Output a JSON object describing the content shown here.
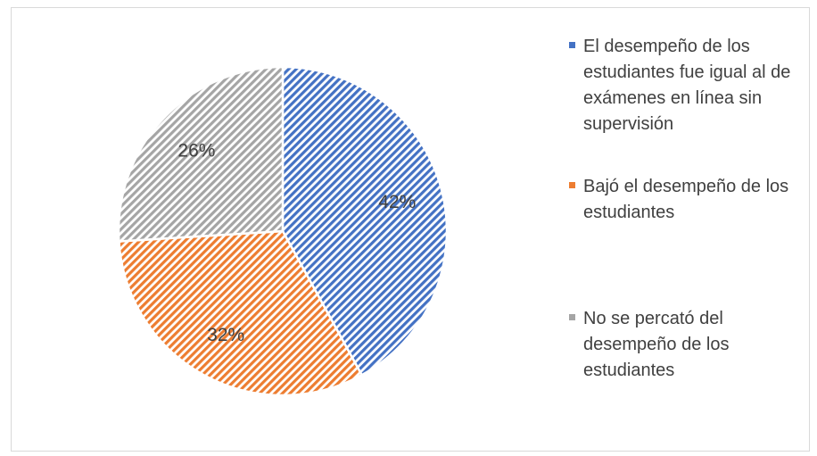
{
  "chart_data": {
    "type": "pie",
    "title": "",
    "slices": [
      {
        "label": "El desempeño de los estudiantes fue igual al de exámenes en línea sin supervisión",
        "value": 42,
        "value_label": "42%",
        "color": "#4472C4"
      },
      {
        "label": "Bajó el desempeño de los estudiantes",
        "value": 32,
        "value_label": "32%",
        "color": "#ED7D31"
      },
      {
        "label": "No se percató del desempeño de los estudiantes",
        "value": 26,
        "value_label": "26%",
        "color": "#A5A5A5"
      }
    ],
    "legend_position": "right",
    "fill_pattern": "diagonal-hatch"
  }
}
